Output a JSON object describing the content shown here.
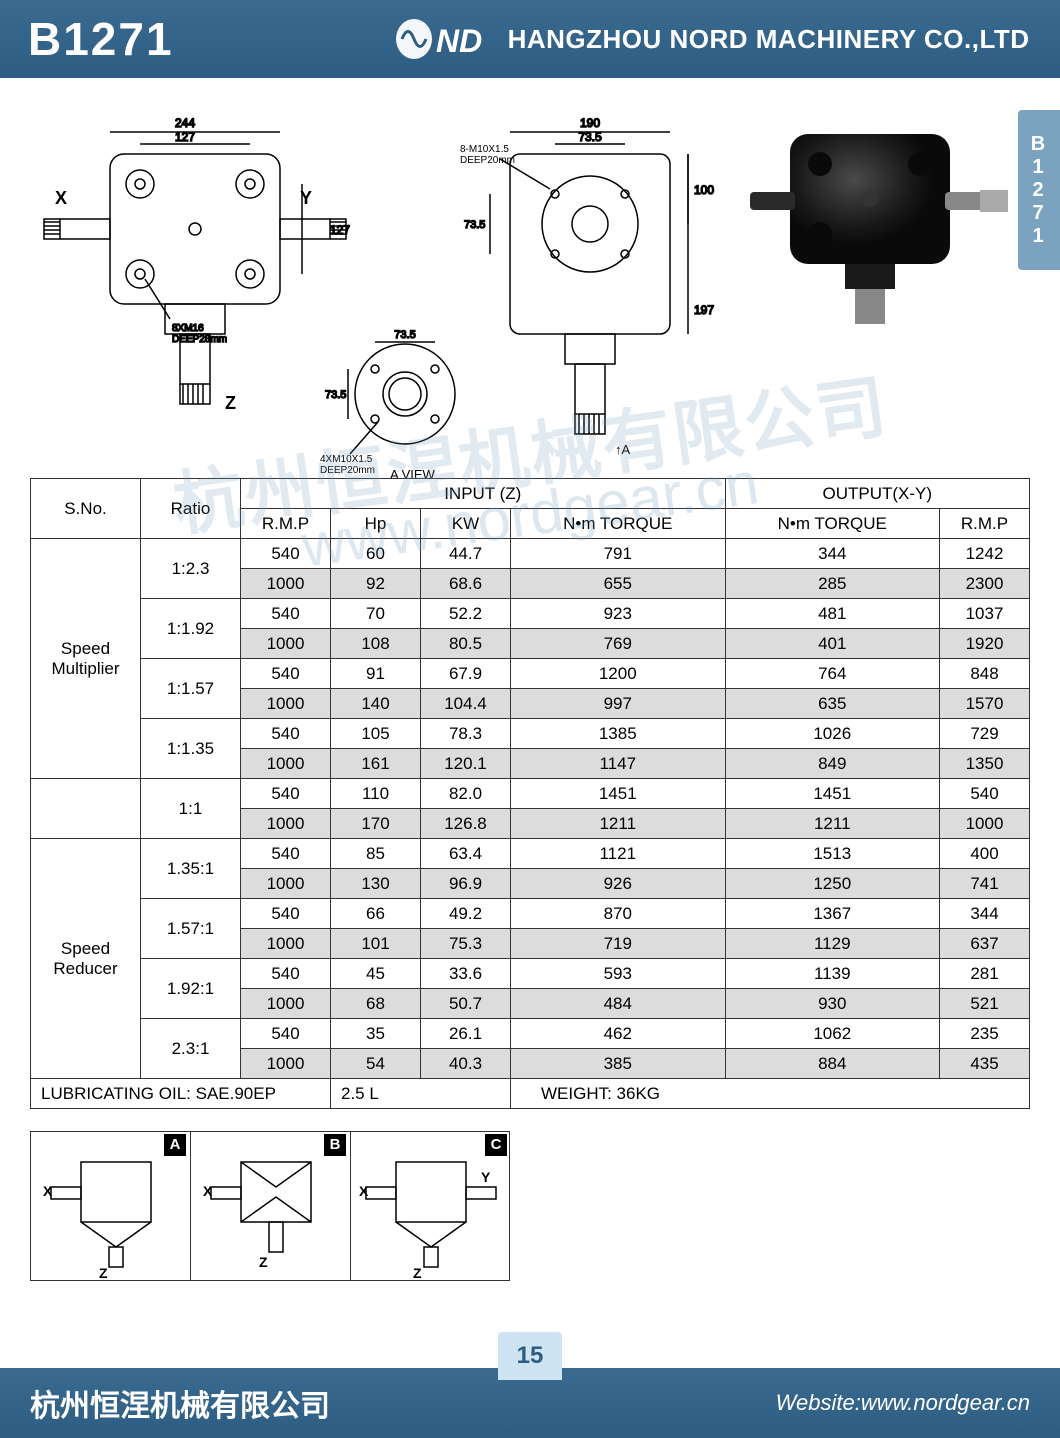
{
  "header": {
    "model": "B1271",
    "brand": "ND",
    "company": "HANGZHOU NORD MACHINERY CO.,LTD"
  },
  "side_tab": "B1271",
  "drawings": {
    "front": {
      "dim_244": "244",
      "dim_127": "127",
      "dim_127v": "127",
      "x": "X",
      "y": "Y",
      "z": "Z",
      "hole": "8XM16\nDEEP28mm"
    },
    "flange": {
      "dim_735a": "73.5",
      "dim_735b": "73.5",
      "hole": "4XM10X1.5\nDEEP20mm",
      "view": "A  VIEW"
    },
    "side": {
      "dim_190": "190",
      "dim_735": "73.5",
      "dim_100": "100",
      "dim_735v": "73.5",
      "dim_197": "197",
      "hole": "8-M10X1.5\nDEEP20mm",
      "arrow": "A"
    }
  },
  "watermark_cn": "杭州恒涅机械有限公司",
  "watermark_url": "www.nordgear.cn",
  "table": {
    "headers": {
      "sno": "S.No.",
      "ratio": "Ratio",
      "input": "INPUT (Z)",
      "output": "OUTPUT(X-Y)",
      "rmp": "R.M.P",
      "hp": "Hp",
      "kw": "KW",
      "nm_torque": "N•m TORQUE",
      "nm_torque_out": "N•m TORQUE",
      "rmp_out": "R.M.P"
    },
    "groups": [
      {
        "sno": "Speed\nMultiplier",
        "span": 8,
        "ratios": [
          {
            "label": "1:2.3",
            "rows": [
              [
                "540",
                "60",
                "44.7",
                "791",
                "344",
                "1242"
              ],
              [
                "1000",
                "92",
                "68.6",
                "655",
                "285",
                "2300"
              ]
            ]
          },
          {
            "label": "1:1.92",
            "rows": [
              [
                "540",
                "70",
                "52.2",
                "923",
                "481",
                "1037"
              ],
              [
                "1000",
                "108",
                "80.5",
                "769",
                "401",
                "1920"
              ]
            ]
          },
          {
            "label": "1:1.57",
            "rows": [
              [
                "540",
                "91",
                "67.9",
                "1200",
                "764",
                "848"
              ],
              [
                "1000",
                "140",
                "104.4",
                "997",
                "635",
                "1570"
              ]
            ]
          },
          {
            "label": "1:1.35",
            "rows": [
              [
                "540",
                "105",
                "78.3",
                "1385",
                "1026",
                "729"
              ],
              [
                "1000",
                "161",
                "120.1",
                "1147",
                "849",
                "1350"
              ]
            ]
          }
        ]
      },
      {
        "sno": "",
        "span": 2,
        "ratios": [
          {
            "label": "1:1",
            "rows": [
              [
                "540",
                "110",
                "82.0",
                "1451",
                "1451",
                "540"
              ],
              [
                "1000",
                "170",
                "126.8",
                "1211",
                "1211",
                "1000"
              ]
            ]
          }
        ]
      },
      {
        "sno": "Speed\nReducer",
        "span": 8,
        "ratios": [
          {
            "label": "1.35:1",
            "rows": [
              [
                "540",
                "85",
                "63.4",
                "1121",
                "1513",
                "400"
              ],
              [
                "1000",
                "130",
                "96.9",
                "926",
                "1250",
                "741"
              ]
            ]
          },
          {
            "label": "1.57:1",
            "rows": [
              [
                "540",
                "66",
                "49.2",
                "870",
                "1367",
                "344"
              ],
              [
                "1000",
                "101",
                "75.3",
                "719",
                "1129",
                "637"
              ]
            ]
          },
          {
            "label": "1.92:1",
            "rows": [
              [
                "540",
                "45",
                "33.6",
                "593",
                "1139",
                "281"
              ],
              [
                "1000",
                "68",
                "50.7",
                "484",
                "930",
                "521"
              ]
            ]
          },
          {
            "label": "2.3:1",
            "rows": [
              [
                "540",
                "35",
                "26.1",
                "462",
                "1062",
                "235"
              ],
              [
                "1000",
                "54",
                "40.3",
                "385",
                "884",
                "435"
              ]
            ]
          }
        ]
      }
    ],
    "footer": {
      "oil": "LUBRICATING OIL: SAE.90EP",
      "volume": "2.5 L",
      "weight": "WEIGHT: 36KG"
    }
  },
  "configs": [
    {
      "tag": "A",
      "x": "X",
      "z": "Z"
    },
    {
      "tag": "B",
      "x": "X",
      "z": "Z"
    },
    {
      "tag": "C",
      "x": "X",
      "y": "Y",
      "z": "Z"
    }
  ],
  "footer": {
    "cn_company": "杭州恒涅机械有限公司",
    "page": "15",
    "website_label": "Website:",
    "website": "www.nordgear.cn"
  },
  "style": {
    "header_bg": "#2d5d82",
    "side_tab_bg": "#7ba3bf",
    "shade_bg": "#dcdcdc",
    "border": "#333333"
  }
}
